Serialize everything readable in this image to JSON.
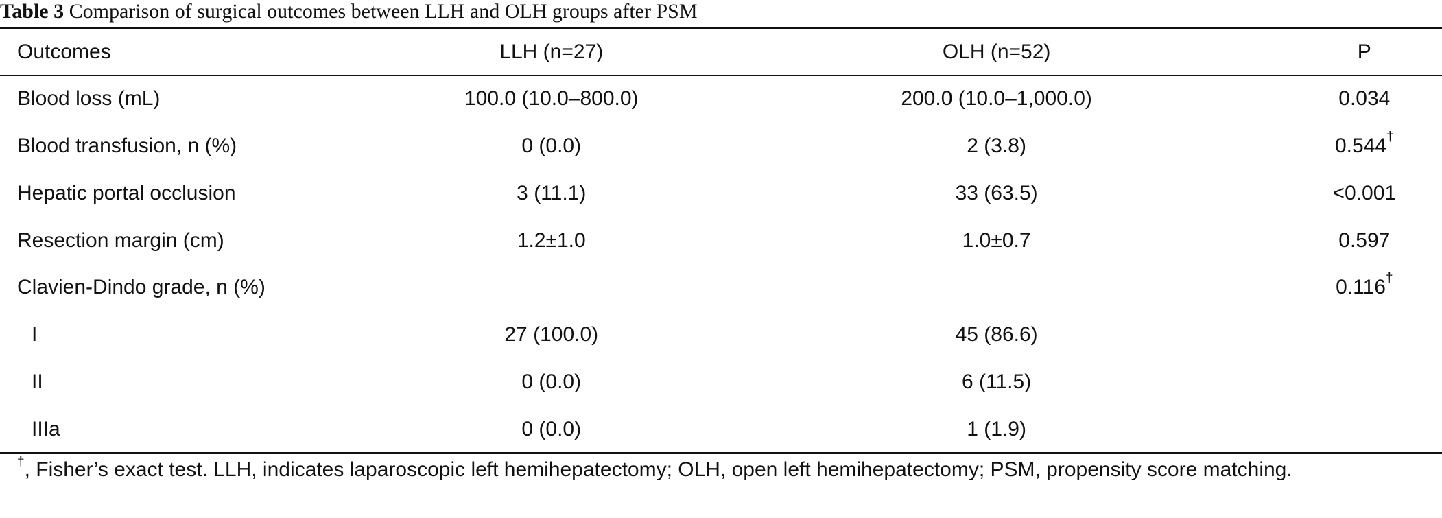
{
  "caption": {
    "label": "Table 3",
    "text": "Comparison of surgical outcomes between LLH and OLH groups after PSM"
  },
  "table": {
    "headers": {
      "outcomes": "Outcomes",
      "llh": "LLH (n=27)",
      "olh": "OLH (n=52)",
      "p": "P"
    },
    "rows": [
      {
        "outcome": "Blood loss (mL)",
        "llh": "100.0 (10.0–800.0)",
        "olh": "200.0 (10.0–1,000.0)",
        "p": "0.034",
        "p_mark": ""
      },
      {
        "outcome": "Blood transfusion, n (%)",
        "llh": "0 (0.0)",
        "olh": "2 (3.8)",
        "p": "0.544",
        "p_mark": "†"
      },
      {
        "outcome": "Hepatic portal occlusion",
        "llh": "3 (11.1)",
        "olh": "33 (63.5)",
        "p": "<0.001",
        "p_mark": ""
      },
      {
        "outcome": "Resection margin (cm)",
        "llh": "1.2±1.0",
        "olh": "1.0±0.7",
        "p": "0.597",
        "p_mark": ""
      },
      {
        "outcome": "Clavien-Dindo grade, n (%)",
        "llh": "",
        "olh": "",
        "p": "0.116",
        "p_mark": "†"
      },
      {
        "outcome": "I",
        "llh": "27 (100.0)",
        "olh": "45 (86.6)",
        "p": "",
        "p_mark": ""
      },
      {
        "outcome": "II",
        "llh": "0 (0.0)",
        "olh": "6 (11.5)",
        "p": "",
        "p_mark": ""
      },
      {
        "outcome": "IIIa",
        "llh": "0 (0.0)",
        "olh": "1 (1.9)",
        "p": "",
        "p_mark": ""
      }
    ]
  },
  "footnote": {
    "mark": "†",
    "text": ", Fisher’s exact test. LLH, indicates laparoscopic left hemihepatectomy; OLH, open left hemihepatectomy; PSM, propensity score matching."
  }
}
